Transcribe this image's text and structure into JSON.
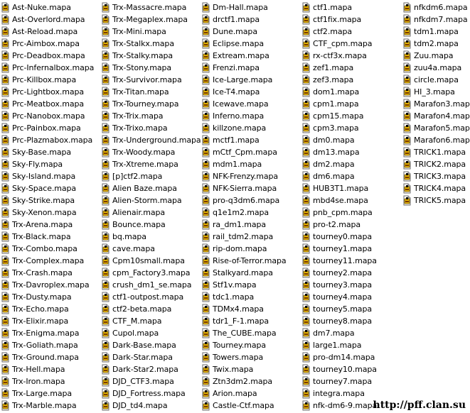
{
  "file_icon": "file-icon",
  "columns": [
    [
      "Ast-Nuke.mapa",
      "Ast-Overlord.mapa",
      "Ast-Reload.mapa",
      "Prc-Aimbox.mapa",
      "Prc-Deadbox.mapa",
      "Prc-Infernalbox.mapa",
      "Prc-Killbox.mapa",
      "Prc-Lightbox.mapa",
      "Prc-Meatbox.mapa",
      "Prc-Nanobox.mapa",
      "Prc-Painbox.mapa",
      "Prc-Plazmabox.mapa",
      "Sky-Base.mapa",
      "Sky-Fly.mapa",
      "Sky-Island.mapa",
      "Sky-Space.mapa",
      "Sky-Strike.mapa",
      "Sky-Xenon.mapa",
      "Trx-Arena.mapa",
      "Trx-Black.mapa",
      "Trx-Combo.mapa",
      "Trx-Complex.mapa",
      "Trx-Crash.mapa",
      "Trx-Davroplex.mapa",
      "Trx-Dusty.mapa",
      "Trx-Echo.mapa",
      "Trx-Elixir.mapa",
      "Trx-Enigma.mapa",
      "Trx-Goliath.mapa",
      "Trx-Ground.mapa",
      "Trx-Hell.mapa",
      "Trx-Iron.mapa",
      "Trx-Large.mapa",
      "Trx-Marble.mapa"
    ],
    [
      "Trx-Massacre.mapa",
      "Trx-Megaplex.mapa",
      "Trx-Mini.mapa",
      "Trx-Stalkx.mapa",
      "Trx-Stalky.mapa",
      "Trx-Stony.mapa",
      "Trx-Survivor.mapa",
      "Trx-Titan.mapa",
      "Trx-Tourney.mapa",
      "Trx-Trix.mapa",
      "Trx-Trixo.mapa",
      "Trx-Underground.mapa",
      "Trx-Woody.mapa",
      "Trx-Xtreme.mapa",
      "[p]ctf2.mapa",
      "Alien Baze.mapa",
      "Alien-Storm.mapa",
      "Alienair.mapa",
      "Bounce.mapa",
      "bq.mapa",
      "cave.mapa",
      "Cpm10small.mapa",
      "cpm_Factory3.mapa",
      "crush_dm1_se.mapa",
      "ctf1-outpost.mapa",
      "ctf2-beta.mapa",
      "CTF_M.mapa",
      "Cupol.mapa",
      "Dark-Base.mapa",
      "Dark-Star.mapa",
      "Dark-Star2.mapa",
      "DJD_CTF3.mapa",
      "DJD_Fortress.mapa",
      "DJD_td4.mapa"
    ],
    [
      "Dm-Hall.mapa",
      "drctf1.mapa",
      "Dune.mapa",
      "Eclipse.mapa",
      "Extream.mapa",
      "Frenzi.mapa",
      "Ice-Large.mapa",
      "Ice-T4.mapa",
      "Icewave.mapa",
      "Inferno.mapa",
      "killzone.mapa",
      "mctf1.mapa",
      "mCtf_Cpm.mapa",
      "mdm1.mapa",
      "NFK-Frenzy.mapa",
      "NFK-Sierra.mapa",
      "pro-q3dm6.mapa",
      "q1e1m2.mapa",
      "ra_dm1.mapa",
      "rail_tdm2.mapa",
      "rip-dom.mapa",
      "Rise-of-Terror.mapa",
      "Stalkyard.mapa",
      "Stf1v.mapa",
      "tdc1.mapa",
      "TDMx4.mapa",
      "tdr1_F-1.mapa",
      "The_CUBE.mapa",
      "Tourney.mapa",
      "Towers.mapa",
      "Twix.mapa",
      "Ztn3dm2.mapa",
      "Arion.mapa",
      "Castle-Ctf.mapa"
    ],
    [
      "ctf1.mapa",
      "ctf1fix.mapa",
      "ctf2.mapa",
      "CTF_cpm.mapa",
      "rx-ctf3x.mapa",
      "zef1.mapa",
      "zef3.mapa",
      "dom1.mapa",
      "cpm1.mapa",
      "cpm15.mapa",
      "cpm3.mapa",
      "dm0.mapa",
      "dm13.mapa",
      "dm2.mapa",
      "dm6.mapa",
      "HUB3T1.mapa",
      "mbd4se.mapa",
      "pnb_cpm.mapa",
      "pro-t2.mapa",
      "tourney0.mapa",
      "tourney1.mapa",
      "tourney11.mapa",
      "tourney2.mapa",
      "tourney3.mapa",
      "tourney4.mapa",
      "tourney5.mapa",
      "tourney8.mapa",
      "dm7.mapa",
      "large1.mapa",
      "pro-dm14.mapa",
      "tourney10.mapa",
      "tourney7.mapa",
      "integra.mapa",
      "nfk-dm6-9.mapa"
    ],
    [
      "nfkdm6.mapa",
      "nfkdm7.mapa",
      "tdm1.mapa",
      "tdm2.mapa",
      "Zuu.mapa",
      "zuu4a.mapa",
      "circle.mapa",
      "HI_3.mapa",
      "Marafon3.mapa",
      "Marafon4.mapa",
      "Marafon5.mapa",
      "Marafon6.mapa",
      "TRICK1.mapa",
      "TRICK2.mapa",
      "TRICK3.mapa",
      "TRICK4.mapa",
      "TRICK5.mapa"
    ]
  ],
  "watermark": "http://pff.clan.su"
}
